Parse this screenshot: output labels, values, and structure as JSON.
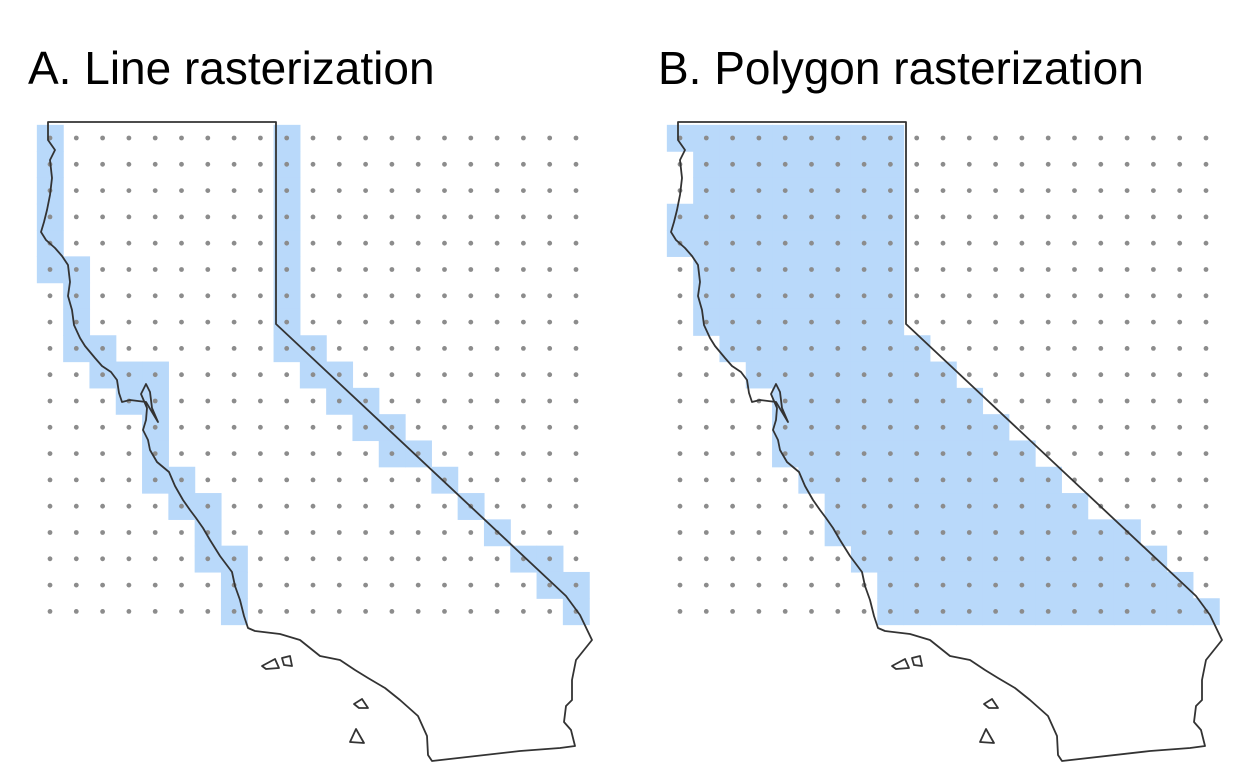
{
  "panels": [
    {
      "id": "line",
      "title": "A. Line rasterization",
      "mode": "line"
    },
    {
      "id": "polygon",
      "title": "B. Polygon rasterization",
      "mode": "polygon"
    }
  ],
  "colors": {
    "cell_fill": "#b9d9fa",
    "grid_dot": "#8c8c8c",
    "outline": "#333333"
  },
  "grid": {
    "columns": 21,
    "rows": 19
  }
}
